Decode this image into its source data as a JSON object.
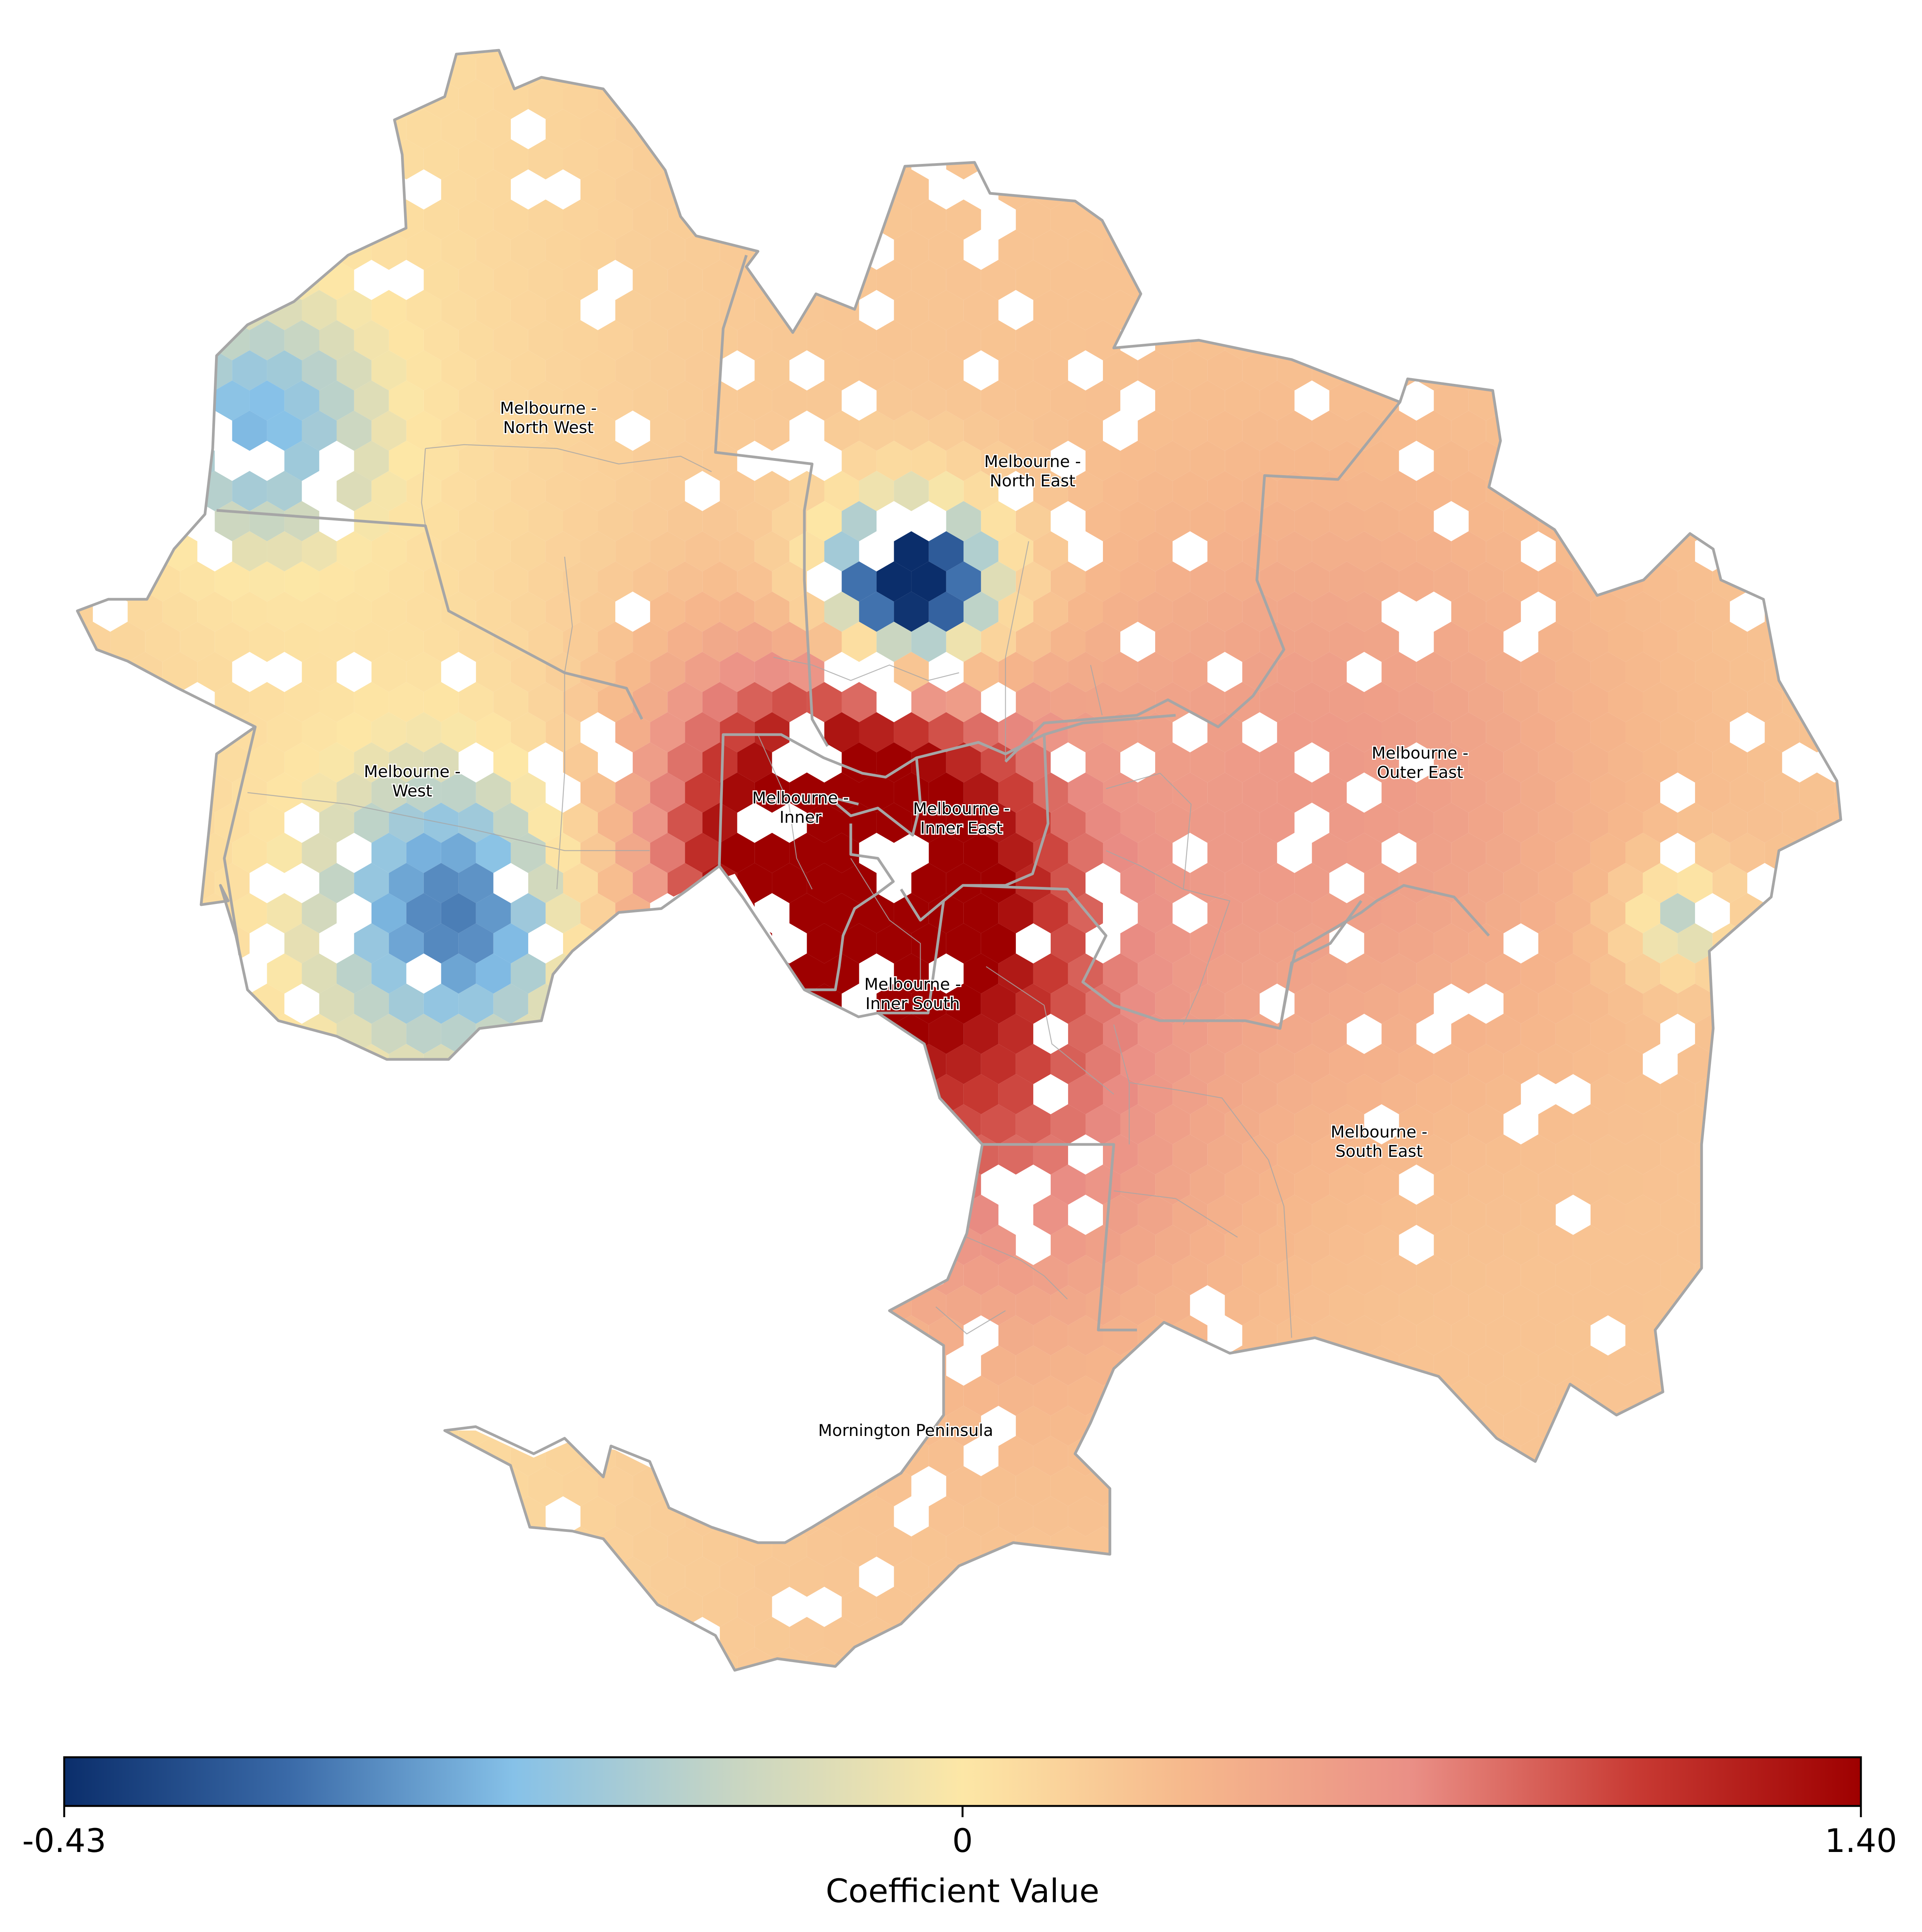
{
  "map": {
    "region_labels": [
      {
        "id": "north-west",
        "lines": [
          "Melbourne -",
          "North West"
        ]
      },
      {
        "id": "north-east",
        "lines": [
          "Melbourne -",
          "North East"
        ]
      },
      {
        "id": "west",
        "lines": [
          "Melbourne -",
          "West"
        ]
      },
      {
        "id": "inner",
        "lines": [
          "Melbourne -",
          "Inner"
        ]
      },
      {
        "id": "inner-east",
        "lines": [
          "Melbourne -",
          "Inner East"
        ]
      },
      {
        "id": "outer-east",
        "lines": [
          "Melbourne -",
          "Outer East"
        ]
      },
      {
        "id": "inner-south",
        "lines": [
          "Melbourne -",
          "Inner South"
        ]
      },
      {
        "id": "south-east",
        "lines": [
          "Melbourne -",
          "South East"
        ]
      },
      {
        "id": "mornington",
        "lines": [
          "Mornington Peninsula"
        ]
      }
    ],
    "colors": {
      "boundary": "#a6a6a6",
      "label_text": "#000000"
    }
  },
  "colorbar": {
    "label": "Coefficient Value",
    "min": -0.43,
    "mid": 0,
    "max": 1.4,
    "ticks": [
      "-0.43",
      "0",
      "1.40"
    ],
    "stops": [
      "#0b2e6b",
      "#3a6aa8",
      "#86c1e8",
      "#c9d6c2",
      "#fde7a6",
      "#f6b88c",
      "#ea8f86",
      "#c83a33",
      "#9e0000"
    ]
  }
}
